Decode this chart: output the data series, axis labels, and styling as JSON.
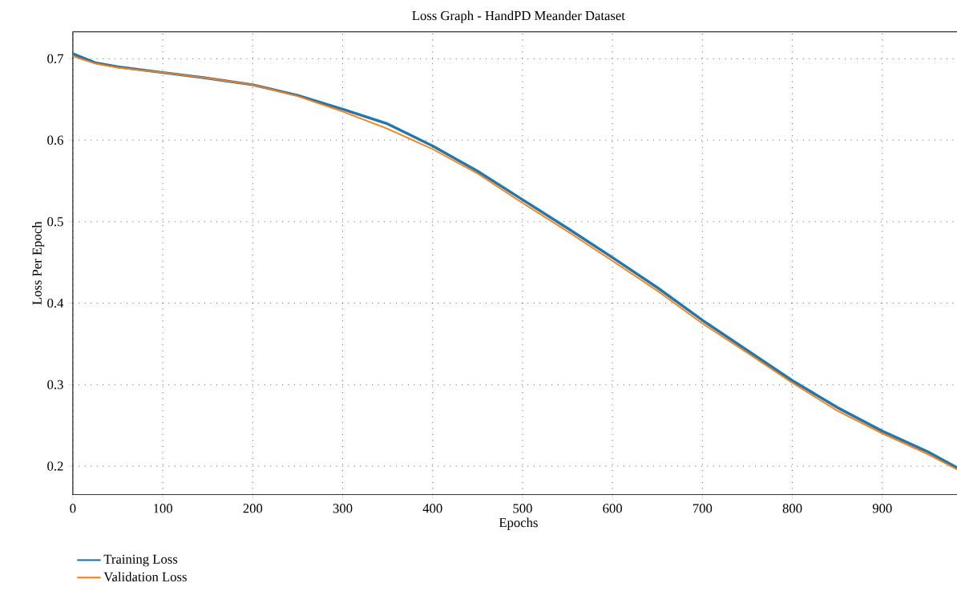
{
  "chart_data": {
    "type": "line",
    "title": "Loss Graph - HandPD Meander Dataset",
    "xlabel": "Epochs",
    "ylabel": "Loss Per Epoch",
    "x": [
      0,
      25,
      50,
      100,
      150,
      200,
      250,
      300,
      350,
      400,
      450,
      500,
      550,
      600,
      650,
      700,
      750,
      800,
      850,
      900,
      950,
      990
    ],
    "series": [
      {
        "name": "Training Loss",
        "color": "#1f77b4",
        "values": [
          0.706,
          0.695,
          0.69,
          0.683,
          0.676,
          0.668,
          0.655,
          0.638,
          0.62,
          0.593,
          0.562,
          0.527,
          0.492,
          0.456,
          0.419,
          0.379,
          0.342,
          0.305,
          0.272,
          0.243,
          0.218,
          0.194
        ]
      },
      {
        "name": "Validation Loss",
        "color": "#ff7f0e",
        "values": [
          0.703,
          0.694,
          0.689,
          0.683,
          0.676,
          0.668,
          0.654,
          0.635,
          0.614,
          0.589,
          0.559,
          0.523,
          0.488,
          0.452,
          0.415,
          0.375,
          0.339,
          0.302,
          0.268,
          0.24,
          0.215,
          0.192
        ]
      }
    ],
    "xlim": [
      0,
      991
    ],
    "ylim": [
      0.165,
      0.733
    ],
    "xticks": [
      0,
      100,
      200,
      300,
      400,
      500,
      600,
      700,
      800,
      900
    ],
    "yticks": [
      0.2,
      0.3,
      0.4,
      0.5,
      0.6,
      0.7
    ],
    "grid": true,
    "legend": "bottom left",
    "line_style": "solid",
    "marker": "none"
  }
}
